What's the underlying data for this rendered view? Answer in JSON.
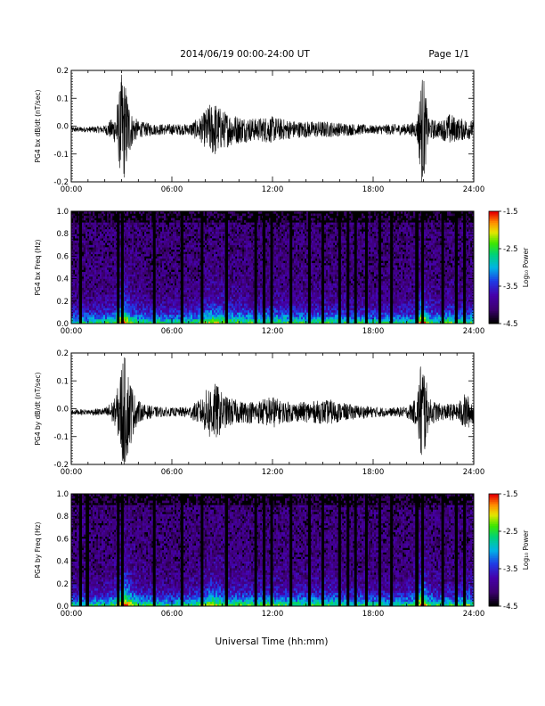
{
  "header": {
    "date_range": "2014/06/19   00:00-24:00  UT",
    "page": "Page 1/1"
  },
  "xlabel": "Universal Time (hh:mm)",
  "colorbar_label": "Log₁₀ Power",
  "colors": {
    "waveform": "#000000",
    "spectrogram_background": "#000000"
  },
  "chart_data": [
    {
      "type": "line",
      "title": "",
      "xlabel": "",
      "ylabel": "PG4 bx dB/dt (nT/sec)",
      "x_ticks": [
        "00:00",
        "06:00",
        "12:00",
        "18:00",
        "24:00"
      ],
      "y_ticks": [
        "-0.2",
        "-0.1",
        "0.0",
        "0.1",
        "0.2"
      ],
      "xlim_hours": [
        0,
        24
      ],
      "ylim": [
        -0.2,
        0.2
      ],
      "series": [
        {
          "x_hours": [
            0,
            1,
            2,
            2.6,
            2.9,
            3.0,
            3.1,
            3.3,
            3.6,
            4.0,
            5.0,
            6.0,
            7.0,
            7.8,
            8.2,
            8.6,
            9.0,
            9.5,
            10.0,
            11.0,
            11.8,
            12.5,
            13.5,
            15.0,
            16.0,
            17.0,
            18.0,
            19.0,
            20.0,
            20.6,
            20.9,
            21.0,
            21.3,
            22.0,
            22.6,
            23.0,
            23.5,
            24.0
          ],
          "amplitude_abs": [
            0.01,
            0.01,
            0.015,
            0.05,
            0.15,
            0.2,
            0.2,
            0.15,
            0.06,
            0.03,
            0.02,
            0.02,
            0.02,
            0.05,
            0.09,
            0.1,
            0.07,
            0.06,
            0.05,
            0.04,
            0.05,
            0.04,
            0.03,
            0.03,
            0.025,
            0.02,
            0.015,
            0.02,
            0.02,
            0.03,
            0.2,
            0.2,
            0.04,
            0.03,
            0.06,
            0.04,
            0.04,
            0.03
          ]
        }
      ]
    },
    {
      "type": "heatmap",
      "title": "",
      "xlabel": "",
      "ylabel": "PG4 bx Freq (Hz)",
      "x_ticks": [
        "00:00",
        "06:00",
        "12:00",
        "18:00",
        "24:00"
      ],
      "y_ticks": [
        "0.0",
        "0.2",
        "0.4",
        "0.6",
        "0.8",
        "1.0"
      ],
      "xlim_hours": [
        0,
        24
      ],
      "ylim": [
        0,
        1.0
      ],
      "colorbar": {
        "label": "Log₁₀ Power",
        "range": [
          -4.5,
          -1.5
        ],
        "ticks": [
          "-1.5",
          "-2.5",
          "-3.5",
          "-4.5"
        ]
      },
      "data_gaps_hours": [
        0.55,
        2.8,
        3.05,
        4.95,
        6.6,
        7.8,
        9.25,
        11.0,
        11.5,
        11.95,
        13.1,
        14.2,
        15.0,
        16.0,
        16.5,
        16.95,
        17.6,
        18.4,
        19.1,
        20.6,
        20.95,
        22.15,
        22.95,
        23.45
      ]
    },
    {
      "type": "line",
      "title": "",
      "xlabel": "",
      "ylabel": "PG4 by dB/dt (nT/sec)",
      "x_ticks": [
        "00:00",
        "06:00",
        "12:00",
        "18:00",
        "24:00"
      ],
      "y_ticks": [
        "-0.2",
        "-0.1",
        "0.0",
        "0.1",
        "0.2"
      ],
      "xlim_hours": [
        0,
        24
      ],
      "ylim": [
        -0.2,
        0.2
      ],
      "series": [
        {
          "x_hours": [
            0,
            1,
            2,
            2.6,
            2.9,
            3.0,
            3.2,
            3.5,
            3.8,
            4.2,
            5.0,
            6.0,
            7.0,
            7.8,
            8.3,
            8.7,
            9.1,
            9.6,
            10.0,
            11.0,
            12.0,
            12.5,
            13.5,
            14.5,
            15.5,
            16.0,
            17.0,
            18.0,
            19.0,
            20.0,
            20.6,
            20.85,
            21.0,
            21.3,
            22.0,
            23.0,
            23.5,
            24.0
          ],
          "amplitude_abs": [
            0.01,
            0.01,
            0.015,
            0.05,
            0.12,
            0.2,
            0.2,
            0.13,
            0.06,
            0.03,
            0.02,
            0.015,
            0.02,
            0.05,
            0.11,
            0.1,
            0.06,
            0.05,
            0.04,
            0.04,
            0.06,
            0.04,
            0.035,
            0.04,
            0.045,
            0.035,
            0.025,
            0.02,
            0.015,
            0.02,
            0.05,
            0.2,
            0.2,
            0.05,
            0.03,
            0.03,
            0.07,
            0.04
          ]
        }
      ]
    },
    {
      "type": "heatmap",
      "title": "",
      "xlabel": "Universal Time (hh:mm)",
      "ylabel": "PG4 by Freq (Hz)",
      "x_ticks": [
        "00:00",
        "06:00",
        "12:00",
        "18:00",
        "24:00"
      ],
      "y_ticks": [
        "0.0",
        "0.2",
        "0.4",
        "0.6",
        "0.8",
        "1.0"
      ],
      "xlim_hours": [
        0,
        24
      ],
      "ylim": [
        0,
        1.0
      ],
      "colorbar": {
        "label": "Log₁₀ Power",
        "range": [
          -4.5,
          -1.5
        ],
        "ticks": [
          "-1.5",
          "-2.5",
          "-3.5",
          "-4.5"
        ]
      },
      "data_gaps_hours": [
        0.55,
        0.95,
        2.8,
        3.05,
        4.95,
        6.6,
        7.8,
        9.25,
        11.0,
        11.5,
        11.95,
        13.1,
        14.2,
        15.0,
        16.0,
        16.5,
        16.95,
        17.6,
        18.4,
        19.1,
        20.6,
        20.95,
        22.15,
        22.95,
        23.45
      ]
    }
  ]
}
